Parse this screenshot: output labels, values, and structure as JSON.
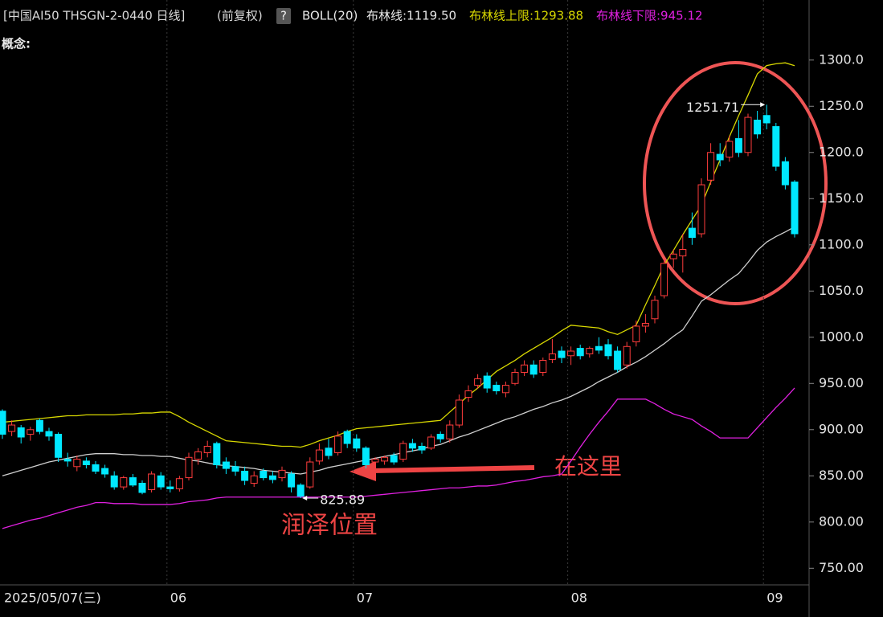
{
  "chart_data": {
    "type": "candlestick",
    "title": "[中国AI50 THSGN-2-0440 日线]",
    "subtitle": "(前复权)",
    "help": "?",
    "indicator": "BOLL(20)",
    "concept_label": "概念:",
    "up_color": "#ff3c3c",
    "down_color": "#00e8ff",
    "categories": [
      "2025/05/07(三)",
      null,
      null,
      null,
      null,
      null,
      null,
      null,
      null,
      null,
      null,
      null,
      null,
      null,
      null,
      null,
      null,
      null,
      "06",
      null,
      null,
      null,
      null,
      null,
      null,
      null,
      null,
      null,
      null,
      null,
      null,
      null,
      null,
      null,
      null,
      null,
      null,
      null,
      "07",
      null,
      null,
      null,
      null,
      null,
      null,
      null,
      null,
      null,
      null,
      null,
      null,
      null,
      null,
      null,
      null,
      null,
      null,
      null,
      null,
      null,
      null,
      "08",
      null,
      null,
      null,
      null,
      null,
      null,
      null,
      null,
      null,
      null,
      null,
      null,
      null,
      null,
      null,
      null,
      null,
      null,
      null,
      null,
      "09",
      null,
      null,
      null
    ],
    "open": [
      920,
      898,
      902,
      895,
      910,
      898,
      895,
      868,
      860,
      866,
      862,
      858,
      850,
      838,
      848,
      842,
      835,
      850,
      838,
      836,
      848,
      868,
      875,
      885,
      865,
      860,
      855,
      842,
      855,
      850,
      848,
      852,
      840,
      838,
      866,
      880,
      875,
      898,
      890,
      880,
      865,
      866,
      872,
      868,
      885,
      882,
      880,
      895,
      890,
      905,
      935,
      948,
      958,
      948,
      940,
      950,
      962,
      970,
      962,
      976,
      985,
      980,
      988,
      982,
      990,
      992,
      985,
      970,
      995,
      1012,
      1020,
      1045,
      1085,
      1088,
      1118,
      1112,
      1170,
      1198,
      1195,
      1215,
      1200,
      1235,
      1240,
      1228,
      1190,
      1168
    ],
    "high": [
      922,
      910,
      905,
      903,
      912,
      902,
      897,
      875,
      872,
      870,
      866,
      862,
      855,
      850,
      852,
      845,
      855,
      854,
      845,
      850,
      875,
      880,
      888,
      887,
      870,
      866,
      860,
      855,
      858,
      855,
      860,
      855,
      842,
      870,
      885,
      890,
      898,
      900,
      895,
      882,
      870,
      872,
      875,
      888,
      890,
      886,
      895,
      898,
      910,
      938,
      948,
      960,
      962,
      952,
      952,
      966,
      975,
      975,
      978,
      998,
      990,
      990,
      992,
      990,
      1000,
      998,
      990,
      995,
      1018,
      1025,
      1045,
      1085,
      1095,
      1112,
      1135,
      1172,
      1210,
      1210,
      1218,
      1235,
      1242,
      1245,
      1251.71,
      1232,
      1195,
      1170
    ],
    "low": [
      890,
      893,
      885,
      888,
      895,
      888,
      865,
      860,
      855,
      858,
      852,
      848,
      835,
      835,
      838,
      830,
      832,
      835,
      832,
      833,
      845,
      862,
      870,
      858,
      852,
      850,
      840,
      838,
      845,
      842,
      844,
      832,
      825.89,
      836,
      862,
      868,
      872,
      880,
      876,
      858,
      860,
      862,
      862,
      865,
      876,
      874,
      878,
      886,
      886,
      902,
      930,
      944,
      940,
      938,
      935,
      948,
      958,
      956,
      958,
      972,
      972,
      970,
      976,
      978,
      982,
      976,
      962,
      966,
      990,
      1005,
      1015,
      1042,
      1075,
      1070,
      1100,
      1108,
      1165,
      1185,
      1190,
      1195,
      1196,
      1215,
      1225,
      1180,
      1160,
      1108
    ],
    "close": [
      895,
      905,
      892,
      900,
      898,
      893,
      870,
      866,
      868,
      862,
      855,
      852,
      838,
      848,
      840,
      832,
      852,
      838,
      836,
      847,
      870,
      876,
      882,
      862,
      858,
      855,
      845,
      850,
      848,
      846,
      856,
      838,
      828,
      865,
      878,
      872,
      893,
      885,
      880,
      862,
      868,
      870,
      865,
      885,
      880,
      878,
      892,
      890,
      905,
      932,
      942,
      955,
      945,
      942,
      948,
      962,
      970,
      960,
      975,
      982,
      978,
      985,
      980,
      988,
      986,
      980,
      965,
      990,
      1012,
      1015,
      1040,
      1080,
      1090,
      1095,
      1108,
      1165,
      1200,
      1192,
      1212,
      1200,
      1238,
      1220,
      1232,
      1185,
      1165,
      1112
    ],
    "series": [
      {
        "name": "布林线:1119.50",
        "color": "#d0d0d0",
        "values": [
          850,
          853,
          856,
          859,
          862,
          865,
          867,
          869,
          871,
          873,
          874,
          874,
          874,
          873,
          873,
          872,
          872,
          871,
          871,
          869,
          867,
          866,
          864,
          862,
          861,
          860,
          859,
          858,
          856,
          855,
          854,
          853,
          852,
          854,
          856,
          859,
          861,
          863,
          865,
          867,
          869,
          871,
          873,
          875,
          877,
          879,
          882,
          884,
          888,
          892,
          895,
          899,
          903,
          907,
          911,
          914,
          918,
          922,
          925,
          929,
          932,
          936,
          941,
          946,
          952,
          957,
          962,
          968,
          973,
          979,
          986,
          993,
          1001,
          1008,
          1023,
          1039,
          1046,
          1054,
          1062,
          1069,
          1081,
          1094,
          1103,
          1109,
          1114,
          1119.5
        ]
      },
      {
        "name": "布林线上限:1293.88",
        "color": "#d8d800",
        "values": [
          908,
          909,
          910,
          911,
          912,
          913,
          914,
          915,
          915,
          916,
          916,
          916,
          916,
          917,
          917,
          918,
          918,
          919,
          919,
          914,
          908,
          903,
          898,
          893,
          888,
          887,
          886,
          885,
          884,
          883,
          882,
          882,
          881,
          884,
          888,
          891,
          894,
          898,
          901,
          902,
          903,
          904,
          905,
          906,
          907,
          908,
          909,
          910,
          919,
          928,
          937,
          945,
          954,
          963,
          969,
          975,
          982,
          988,
          994,
          1000,
          1007,
          1013,
          1012,
          1011,
          1010,
          1006,
          1003,
          1008,
          1013,
          1035,
          1056,
          1078,
          1094,
          1111,
          1127,
          1143,
          1168,
          1192,
          1217,
          1240,
          1262,
          1285,
          1294,
          1296,
          1297,
          1293.88
        ]
      },
      {
        "name": "布林线下限:945.12",
        "color": "#e020e0",
        "values": [
          793,
          796,
          799,
          802,
          804,
          807,
          810,
          813,
          816,
          818,
          821,
          821,
          820,
          820,
          820,
          819,
          819,
          819,
          819,
          820,
          822,
          823,
          824,
          826,
          827,
          827,
          827,
          827,
          827,
          827,
          827,
          827,
          827,
          827,
          827,
          827,
          827,
          827,
          827,
          828,
          829,
          830,
          831,
          832,
          833,
          834,
          835,
          836,
          837,
          837,
          838,
          839,
          839,
          840,
          842,
          844,
          845,
          847,
          849,
          850,
          852,
          866,
          881,
          895,
          908,
          920,
          933,
          933,
          933,
          933,
          928,
          922,
          917,
          914,
          911,
          904,
          898,
          891,
          891,
          891,
          891,
          902,
          913,
          924,
          934,
          945.12
        ]
      }
    ],
    "max_label": 1251.71,
    "min_label": 825.89,
    "annotations": [
      {
        "text": "在这里"
      },
      {
        "text": "润泽位置"
      }
    ],
    "ylim": [
      732,
      1365
    ],
    "yticks": [
      {
        "value": 1300,
        "label": "1300.0"
      },
      {
        "value": 1250,
        "label": "1250.0"
      },
      {
        "value": 1200,
        "label": "1200.0"
      },
      {
        "value": 1150,
        "label": "1150.0"
      },
      {
        "value": 1100,
        "label": "1100.0"
      },
      {
        "value": 1050,
        "label": "1050.0"
      },
      {
        "value": 1000,
        "label": "1000.0"
      },
      {
        "value": 950,
        "label": "950.00"
      },
      {
        "value": 900,
        "label": "900.00"
      },
      {
        "value": 850,
        "label": "850.00"
      },
      {
        "value": 800,
        "label": "800.00"
      },
      {
        "value": 750,
        "label": "750.00"
      }
    ]
  }
}
